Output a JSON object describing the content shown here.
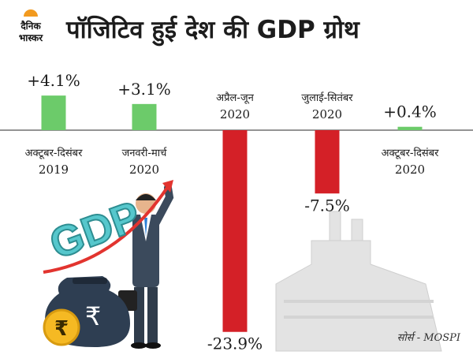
{
  "brand": {
    "line1": "दैनिक",
    "line2": "भास्कर"
  },
  "illustration": {
    "badge": "GDP",
    "icons": [
      "rupee-money-bag-icon",
      "rupee-coin-icon",
      "businessman-icon",
      "rising-arrow-icon",
      "factory-icon"
    ]
  },
  "source": "सोर्स - MOSPI",
  "colors": {
    "positive": "#6ccb6a",
    "negative": "#d42027",
    "baseline": "#555555",
    "text": "#1c1c1c"
  },
  "chart_data": {
    "type": "bar",
    "title": "पॉजिटिव हुई देश की GDP ग्रोथ",
    "categories": [
      {
        "line1": "अक्टूबर-दिसंबर",
        "line2": "2019"
      },
      {
        "line1": "जनवरी-मार्च",
        "line2": "2020"
      },
      {
        "line1": "अप्रैल-जून",
        "line2": "2020"
      },
      {
        "line1": "जुलाई-सितंबर",
        "line2": "2020"
      },
      {
        "line1": "अक्टूबर-दिसंबर",
        "line2": "2020"
      }
    ],
    "values": [
      4.1,
      3.1,
      -23.9,
      -7.5,
      0.4
    ],
    "value_labels": [
      "+4.1%",
      "+3.1%",
      "-23.9%",
      "-7.5%",
      "+0.4%"
    ],
    "unit": "%",
    "ylim": [
      -23.9,
      4.1
    ],
    "grid": false,
    "legend": "none"
  }
}
